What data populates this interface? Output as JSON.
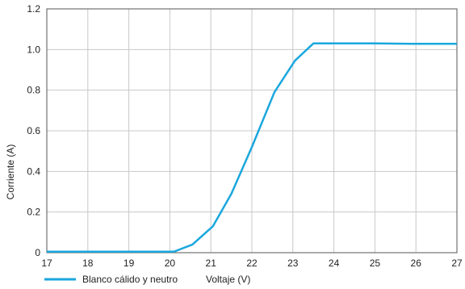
{
  "chart_data": {
    "type": "line",
    "title": "",
    "xlabel": "Voltaje (V)",
    "ylabel": "Corriente (A)",
    "xlim": [
      17,
      27
    ],
    "ylim": [
      0,
      1.2
    ],
    "x_ticks": [
      "17",
      "18",
      "19",
      "20",
      "21",
      "22",
      "23",
      "24",
      "25",
      "26",
      "27"
    ],
    "y_ticks": [
      "0",
      "0.2",
      "0.4",
      "0.6",
      "0.8",
      "1.0",
      "1.2"
    ],
    "grid": true,
    "legend_position": "bottom-left",
    "series": [
      {
        "name": "Blanco cálido y neutro",
        "color": "#1aa7dd",
        "x": [
          17,
          18,
          19,
          20,
          20.1,
          20.55,
          21.05,
          21.5,
          22.0,
          22.55,
          23.05,
          23.5,
          24,
          25,
          26,
          27
        ],
        "y": [
          0.005,
          0.005,
          0.005,
          0.005,
          0.005,
          0.04,
          0.13,
          0.29,
          0.52,
          0.79,
          0.945,
          1.03,
          1.03,
          1.03,
          1.028,
          1.028
        ]
      }
    ]
  }
}
